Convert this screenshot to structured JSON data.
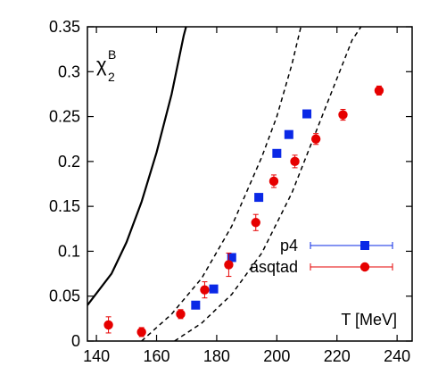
{
  "chart_data": {
    "type": "scatter",
    "xlim": [
      137,
      245
    ],
    "ylim": [
      0,
      0.35
    ],
    "xticks": [
      140,
      160,
      180,
      200,
      220,
      240
    ],
    "yticks": [
      0,
      0.05,
      0.1,
      0.15,
      0.2,
      0.25,
      0.3,
      0.35
    ],
    "grid": false,
    "legend_position": "middle-right",
    "annotations": {
      "ylabel_main": "χ",
      "ylabel_sup": "B",
      "ylabel_sub": "2",
      "xlabel": "T [MeV]"
    },
    "series": [
      {
        "name": "p4",
        "marker": "square",
        "color": "#0a28e6",
        "points": [
          {
            "x": 173,
            "y": 0.04
          },
          {
            "x": 179,
            "y": 0.058
          },
          {
            "x": 185,
            "y": 0.093
          },
          {
            "x": 194,
            "y": 0.16
          },
          {
            "x": 200,
            "y": 0.209
          },
          {
            "x": 204,
            "y": 0.23
          },
          {
            "x": 210,
            "y": 0.253
          }
        ]
      },
      {
        "name": "asqtad",
        "marker": "circle",
        "color": "#e60000",
        "points": [
          {
            "x": 144,
            "y": 0.018,
            "err": 0.009
          },
          {
            "x": 155,
            "y": 0.01,
            "err": 0.005
          },
          {
            "x": 168,
            "y": 0.03,
            "err": 0.005
          },
          {
            "x": 176,
            "y": 0.057,
            "err": 0.009
          },
          {
            "x": 184,
            "y": 0.085,
            "err": 0.013
          },
          {
            "x": 193,
            "y": 0.132,
            "err": 0.009
          },
          {
            "x": 199,
            "y": 0.178,
            "err": 0.007
          },
          {
            "x": 206,
            "y": 0.2,
            "err": 0.007
          },
          {
            "x": 213,
            "y": 0.225,
            "err": 0.006
          },
          {
            "x": 222,
            "y": 0.252,
            "err": 0.006
          },
          {
            "x": 234,
            "y": 0.279,
            "err": 0.005
          }
        ]
      }
    ],
    "curves": [
      {
        "style": "solid",
        "points": [
          [
            137,
            0.04
          ],
          [
            145,
            0.075
          ],
          [
            150,
            0.11
          ],
          [
            155,
            0.155
          ],
          [
            160,
            0.21
          ],
          [
            165,
            0.275
          ],
          [
            169,
            0.34
          ],
          [
            171,
            0.365
          ]
        ]
      },
      {
        "style": "dashed",
        "points": [
          [
            155,
            0.0
          ],
          [
            165,
            0.03
          ],
          [
            175,
            0.07
          ],
          [
            185,
            0.128
          ],
          [
            195,
            0.205
          ],
          [
            200,
            0.25
          ],
          [
            205,
            0.308
          ],
          [
            208,
            0.35
          ]
        ]
      },
      {
        "style": "dashed",
        "points": [
          [
            166,
            0.0
          ],
          [
            175,
            0.02
          ],
          [
            185,
            0.052
          ],
          [
            195,
            0.098
          ],
          [
            205,
            0.165
          ],
          [
            215,
            0.25
          ],
          [
            225,
            0.335
          ],
          [
            228,
            0.35
          ]
        ]
      }
    ]
  }
}
